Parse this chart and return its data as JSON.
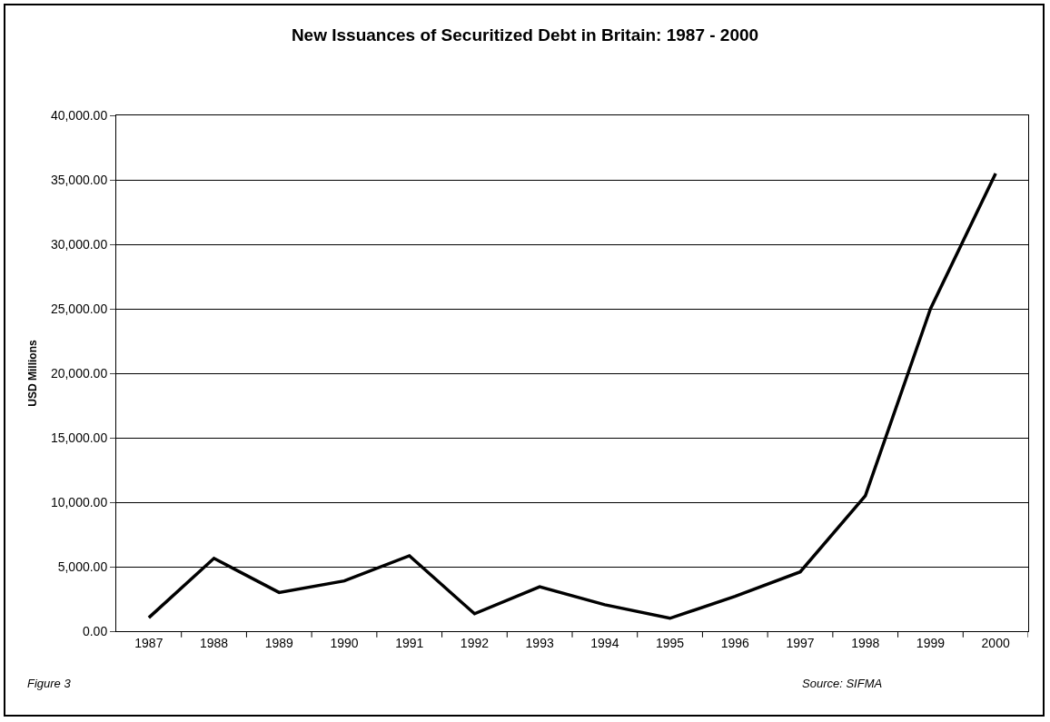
{
  "chart_data": {
    "type": "line",
    "title": "New Issuances of Securitized Debt in Britain: 1987 - 2000",
    "ylabel": "USD Millions",
    "categories": [
      "1987",
      "1988",
      "1989",
      "1990",
      "1991",
      "1992",
      "1993",
      "1994",
      "1995",
      "1996",
      "1997",
      "1998",
      "1999",
      "2000"
    ],
    "series": [
      {
        "color": "#000000",
        "values": [
          1050,
          5650,
          3000,
          3900,
          5850,
          1350,
          3450,
          2050,
          1000,
          2700,
          4600,
          10500,
          25000,
          35500
        ]
      }
    ],
    "ylim": [
      0,
      40000
    ],
    "yticks": [
      {
        "value": 0,
        "label": "0.00"
      },
      {
        "value": 5000,
        "label": "5,000.00"
      },
      {
        "value": 10000,
        "label": "10,000.00"
      },
      {
        "value": 15000,
        "label": "15,000.00"
      },
      {
        "value": 20000,
        "label": "20,000.00"
      },
      {
        "value": 25000,
        "label": "25,000.00"
      },
      {
        "value": 30000,
        "label": "30,000.00"
      },
      {
        "value": 35000,
        "label": "35,000.00"
      },
      {
        "value": 40000,
        "label": "40,000.00"
      }
    ],
    "grid": "y",
    "marker": "none",
    "line_style": "solid",
    "annotations": [
      "Figure 3",
      "Source: SIFMA"
    ]
  }
}
